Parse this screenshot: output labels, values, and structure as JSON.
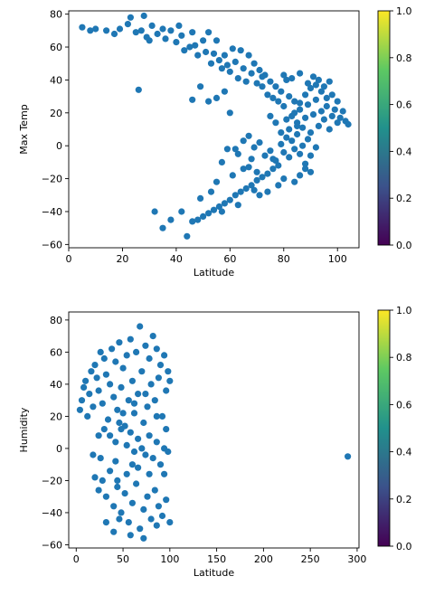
{
  "chart_data": [
    {
      "type": "scatter",
      "xlabel": "Latitude",
      "ylabel": "Max Temp",
      "xlim": [
        0,
        108
      ],
      "ylim": [
        -62,
        82
      ],
      "xticks": [
        0,
        20,
        40,
        60,
        80,
        100
      ],
      "yticks": [
        -60,
        -40,
        -20,
        0,
        20,
        40,
        60,
        80
      ],
      "marker_color": "#1f77b4",
      "colorbar": {
        "range": [
          0,
          1
        ],
        "ticks": [
          "0.0",
          "0.2",
          "0.4",
          "0.6",
          "0.8",
          "1.0"
        ],
        "colormap": "viridis"
      },
      "points": [
        [
          5,
          72
        ],
        [
          8,
          70
        ],
        [
          10,
          71
        ],
        [
          14,
          70
        ],
        [
          17,
          68
        ],
        [
          19,
          71
        ],
        [
          22,
          74
        ],
        [
          23,
          78
        ],
        [
          25,
          69
        ],
        [
          28,
          79
        ],
        [
          26,
          34
        ],
        [
          27,
          70
        ],
        [
          29,
          66
        ],
        [
          30,
          64
        ],
        [
          31,
          73
        ],
        [
          33,
          68
        ],
        [
          35,
          71
        ],
        [
          36,
          65
        ],
        [
          38,
          70
        ],
        [
          40,
          63
        ],
        [
          41,
          73
        ],
        [
          42,
          67
        ],
        [
          43,
          58
        ],
        [
          45,
          60
        ],
        [
          46,
          69
        ],
        [
          47,
          61
        ],
        [
          48,
          55
        ],
        [
          50,
          64
        ],
        [
          51,
          57
        ],
        [
          52,
          69
        ],
        [
          53,
          50
        ],
        [
          54,
          56
        ],
        [
          55,
          64
        ],
        [
          56,
          52
        ],
        [
          57,
          47
        ],
        [
          58,
          55
        ],
        [
          59,
          49
        ],
        [
          60,
          45
        ],
        [
          61,
          59
        ],
        [
          62,
          51
        ],
        [
          63,
          41
        ],
        [
          64,
          58
        ],
        [
          65,
          47
        ],
        [
          66,
          39
        ],
        [
          67,
          55
        ],
        [
          68,
          44
        ],
        [
          69,
          50
        ],
        [
          70,
          38
        ],
        [
          71,
          46
        ],
        [
          72,
          36
        ],
        [
          73,
          43
        ],
        [
          74,
          31
        ],
        [
          75,
          39
        ],
        [
          76,
          29
        ],
        [
          77,
          36
        ],
        [
          78,
          27
        ],
        [
          79,
          33
        ],
        [
          80,
          24
        ],
        [
          81,
          40
        ],
        [
          82,
          30
        ],
        [
          83,
          18
        ],
        [
          84,
          27
        ],
        [
          85,
          14
        ],
        [
          86,
          22
        ],
        [
          87,
          11
        ],
        [
          88,
          17
        ],
        [
          89,
          25
        ],
        [
          90,
          8
        ],
        [
          91,
          19
        ],
        [
          92,
          28
        ],
        [
          93,
          12
        ],
        [
          94,
          21
        ],
        [
          95,
          16
        ],
        [
          96,
          24
        ],
        [
          97,
          10
        ],
        [
          98,
          18
        ],
        [
          99,
          22
        ],
        [
          100,
          14
        ],
        [
          101,
          17
        ],
        [
          103,
          15
        ],
        [
          104,
          13
        ],
        [
          46,
          28
        ],
        [
          52,
          27
        ],
        [
          55,
          29
        ],
        [
          49,
          36
        ],
        [
          58,
          33
        ],
        [
          72,
          42
        ],
        [
          75,
          18
        ],
        [
          60,
          20
        ],
        [
          62,
          -2
        ],
        [
          65,
          3
        ],
        [
          67,
          6
        ],
        [
          69,
          -1
        ],
        [
          71,
          2
        ],
        [
          73,
          -6
        ],
        [
          75,
          -3
        ],
        [
          77,
          -9
        ],
        [
          79,
          1
        ],
        [
          80,
          -4
        ],
        [
          81,
          5
        ],
        [
          82,
          -7
        ],
        [
          83,
          3
        ],
        [
          84,
          -2
        ],
        [
          85,
          7
        ],
        [
          86,
          -5
        ],
        [
          87,
          0
        ],
        [
          88,
          -11
        ],
        [
          89,
          4
        ],
        [
          90,
          -16
        ],
        [
          78,
          -12
        ],
        [
          76,
          -14
        ],
        [
          74,
          -17
        ],
        [
          72,
          -19
        ],
        [
          70,
          -21
        ],
        [
          68,
          -24
        ],
        [
          66,
          -26
        ],
        [
          64,
          -28
        ],
        [
          62,
          -30
        ],
        [
          60,
          -33
        ],
        [
          58,
          -35
        ],
        [
          56,
          -37
        ],
        [
          54,
          -39
        ],
        [
          52,
          -41
        ],
        [
          50,
          -43
        ],
        [
          48,
          -45
        ],
        [
          46,
          -46
        ],
        [
          44,
          -55
        ],
        [
          38,
          -45
        ],
        [
          32,
          -40
        ],
        [
          35,
          -50
        ],
        [
          42,
          -40
        ],
        [
          49,
          -32
        ],
        [
          55,
          -22
        ],
        [
          53,
          -28
        ],
        [
          57,
          -40
        ],
        [
          63,
          -36
        ],
        [
          61,
          -18
        ],
        [
          65,
          -14
        ],
        [
          68,
          -8
        ],
        [
          70,
          -16
        ],
        [
          63,
          -5
        ],
        [
          59,
          -2
        ],
        [
          57,
          -10
        ],
        [
          80,
          -20
        ],
        [
          84,
          -22
        ],
        [
          86,
          -18
        ],
        [
          78,
          -24
        ],
        [
          74,
          -28
        ],
        [
          71,
          -30
        ],
        [
          69,
          -27
        ],
        [
          67,
          -13
        ],
        [
          76,
          -8
        ],
        [
          88,
          -14
        ],
        [
          90,
          -6
        ],
        [
          92,
          -1
        ],
        [
          85,
          12
        ],
        [
          82,
          10
        ],
        [
          79,
          8
        ],
        [
          77,
          14
        ],
        [
          81,
          16
        ],
        [
          84,
          20
        ],
        [
          86,
          26
        ],
        [
          88,
          31
        ],
        [
          90,
          35
        ],
        [
          92,
          37
        ],
        [
          94,
          33
        ],
        [
          96,
          29
        ],
        [
          98,
          31
        ],
        [
          100,
          27
        ],
        [
          102,
          21
        ],
        [
          80,
          43
        ],
        [
          83,
          41
        ],
        [
          86,
          44
        ],
        [
          89,
          38
        ],
        [
          91,
          42
        ],
        [
          93,
          40
        ],
        [
          95,
          36
        ],
        [
          97,
          39
        ]
      ]
    },
    {
      "type": "scatter",
      "xlabel": "Latitude",
      "ylabel": "Humidity",
      "xlim": [
        -8,
        302
      ],
      "ylim": [
        -62,
        85
      ],
      "xticks": [
        0,
        50,
        100,
        150,
        200,
        250,
        300
      ],
      "yticks": [
        -60,
        -40,
        -20,
        0,
        20,
        40,
        60,
        80
      ],
      "marker_color": "#1f77b4",
      "colorbar": {
        "range": [
          0,
          1
        ],
        "ticks": [
          "0.0",
          "0.2",
          "0.4",
          "0.6",
          "0.8",
          "1.0"
        ],
        "colormap": "viridis"
      },
      "points": [
        [
          4,
          24
        ],
        [
          6,
          30
        ],
        [
          8,
          38
        ],
        [
          10,
          42
        ],
        [
          12,
          20
        ],
        [
          14,
          34
        ],
        [
          16,
          48
        ],
        [
          18,
          26
        ],
        [
          20,
          52
        ],
        [
          22,
          44
        ],
        [
          24,
          36
        ],
        [
          26,
          60
        ],
        [
          28,
          28
        ],
        [
          30,
          56
        ],
        [
          32,
          46
        ],
        [
          34,
          18
        ],
        [
          36,
          40
        ],
        [
          38,
          62
        ],
        [
          40,
          32
        ],
        [
          42,
          54
        ],
        [
          44,
          24
        ],
        [
          46,
          66
        ],
        [
          48,
          38
        ],
        [
          50,
          50
        ],
        [
          52,
          14
        ],
        [
          54,
          58
        ],
        [
          56,
          30
        ],
        [
          58,
          68
        ],
        [
          60,
          42
        ],
        [
          62,
          22
        ],
        [
          64,
          60
        ],
        [
          66,
          34
        ],
        [
          68,
          76
        ],
        [
          70,
          48
        ],
        [
          72,
          16
        ],
        [
          74,
          64
        ],
        [
          76,
          26
        ],
        [
          78,
          56
        ],
        [
          80,
          40
        ],
        [
          82,
          70
        ],
        [
          84,
          30
        ],
        [
          86,
          62
        ],
        [
          88,
          44
        ],
        [
          90,
          52
        ],
        [
          92,
          20
        ],
        [
          94,
          58
        ],
        [
          96,
          36
        ],
        [
          98,
          48
        ],
        [
          100,
          42
        ],
        [
          36,
          8
        ],
        [
          42,
          4
        ],
        [
          48,
          12
        ],
        [
          54,
          2
        ],
        [
          58,
          10
        ],
        [
          62,
          -2
        ],
        [
          66,
          6
        ],
        [
          70,
          0
        ],
        [
          74,
          -4
        ],
        [
          78,
          8
        ],
        [
          82,
          -6
        ],
        [
          86,
          4
        ],
        [
          90,
          -10
        ],
        [
          94,
          0
        ],
        [
          98,
          -2
        ],
        [
          20,
          -18
        ],
        [
          24,
          -26
        ],
        [
          28,
          -20
        ],
        [
          32,
          -30
        ],
        [
          36,
          -14
        ],
        [
          40,
          -36
        ],
        [
          44,
          -24
        ],
        [
          48,
          -40
        ],
        [
          52,
          -28
        ],
        [
          56,
          -46
        ],
        [
          60,
          -34
        ],
        [
          64,
          -22
        ],
        [
          68,
          -50
        ],
        [
          72,
          -38
        ],
        [
          76,
          -30
        ],
        [
          80,
          -44
        ],
        [
          84,
          -26
        ],
        [
          88,
          -36
        ],
        [
          92,
          -42
        ],
        [
          96,
          -32
        ],
        [
          100,
          -46
        ],
        [
          32,
          -46
        ],
        [
          40,
          -52
        ],
        [
          46,
          -44
        ],
        [
          58,
          -54
        ],
        [
          72,
          -56
        ],
        [
          86,
          -48
        ],
        [
          94,
          -16
        ],
        [
          66,
          -12
        ],
        [
          54,
          -16
        ],
        [
          42,
          -8
        ],
        [
          26,
          -6
        ],
        [
          18,
          -4
        ],
        [
          24,
          8
        ],
        [
          30,
          12
        ],
        [
          46,
          16
        ],
        [
          50,
          22
        ],
        [
          62,
          28
        ],
        [
          74,
          34
        ],
        [
          86,
          20
        ],
        [
          96,
          12
        ],
        [
          78,
          -16
        ],
        [
          60,
          -10
        ],
        [
          44,
          -20
        ],
        [
          290,
          -5
        ]
      ]
    }
  ]
}
